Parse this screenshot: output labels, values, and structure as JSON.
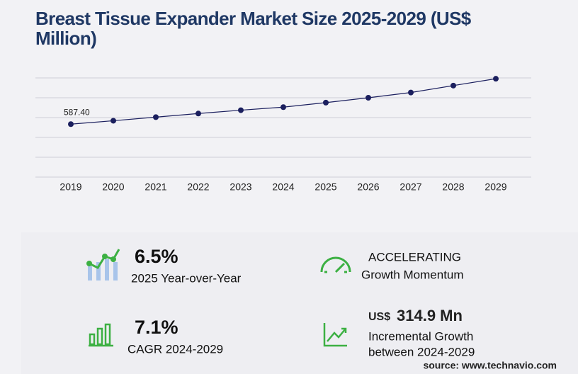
{
  "chart_data": {
    "type": "line",
    "title": "Breast Tissue Expander Market Size 2025-2029 (US$ Million)",
    "categories": [
      "2019",
      "2020",
      "2021",
      "2022",
      "2023",
      "2024",
      "2025",
      "2026",
      "2027",
      "2028",
      "2029"
    ],
    "values": [
      587.4,
      625,
      665,
      705,
      742,
      776,
      826,
      880,
      938,
      1015,
      1091
    ],
    "value_labels": [
      "587.40",
      null,
      null,
      null,
      null,
      null,
      null,
      null,
      null,
      null,
      null
    ],
    "color": "#1b1f5e",
    "ylim": [
      0,
      1100
    ],
    "yticks": [
      0,
      220,
      440,
      660,
      880,
      1100
    ],
    "grid": true,
    "show_y_tick_labels": false
  },
  "stats": {
    "yoy": {
      "value": "6.5%",
      "label": "2025 Year-over-Year"
    },
    "momentum": {
      "value": "ACCELERATING",
      "label": "Growth Momentum"
    },
    "cagr": {
      "value": "7.1%",
      "label": "CAGR 2024-2029"
    },
    "incremental": {
      "unit": "US$",
      "value": "314.9 Mn",
      "label_line1": "Incremental Growth",
      "label_line2": "between 2024-2029"
    }
  },
  "source": "source: www.technavio.com"
}
